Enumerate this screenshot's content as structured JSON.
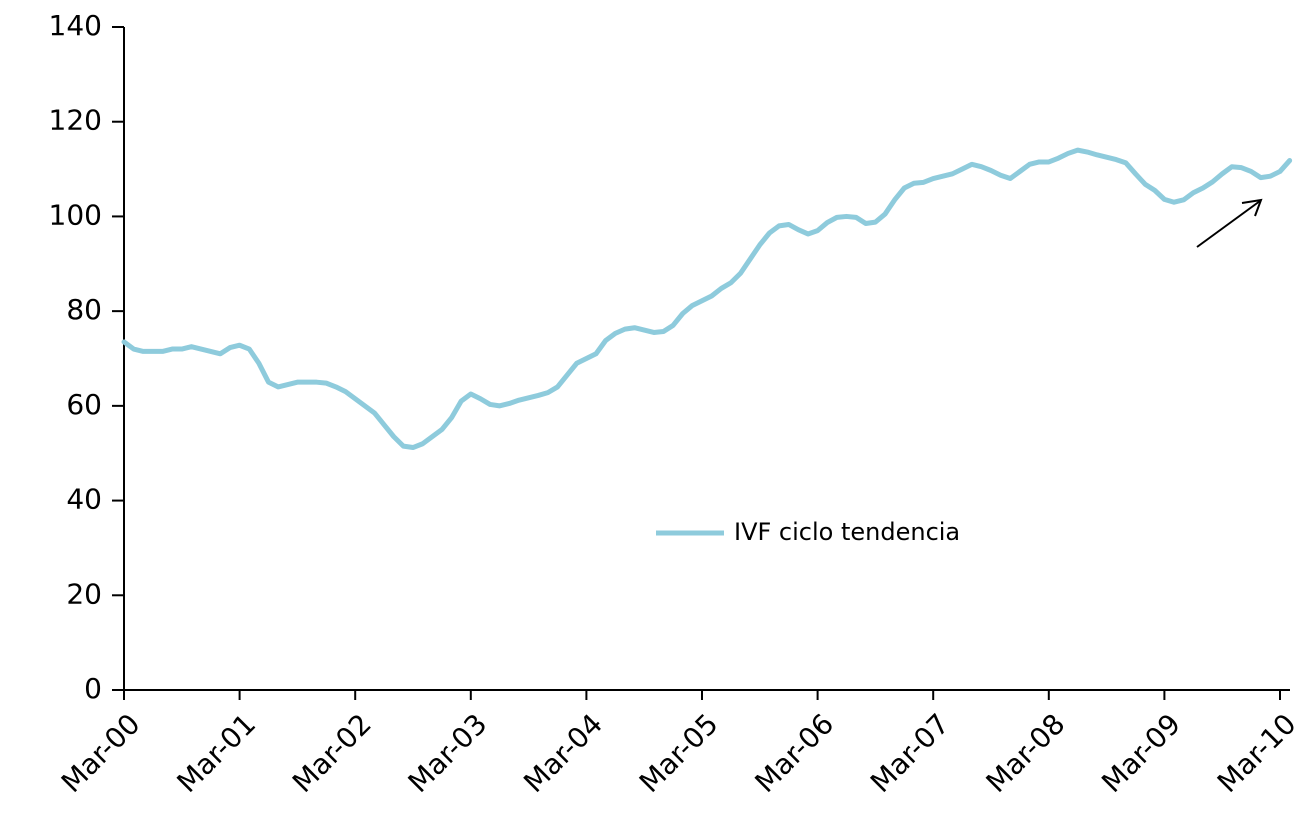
{
  "chart_data": {
    "type": "line",
    "categories": [
      "Mar-00",
      null,
      null,
      null,
      null,
      null,
      null,
      null,
      null,
      null,
      null,
      null,
      "Mar-01",
      null,
      null,
      null,
      null,
      null,
      null,
      null,
      null,
      null,
      null,
      null,
      "Mar-02",
      null,
      null,
      null,
      null,
      null,
      null,
      null,
      null,
      null,
      null,
      null,
      "Mar-03",
      null,
      null,
      null,
      null,
      null,
      null,
      null,
      null,
      null,
      null,
      null,
      "Mar-04",
      null,
      null,
      null,
      null,
      null,
      null,
      null,
      null,
      null,
      null,
      null,
      "Mar-05",
      null,
      null,
      null,
      null,
      null,
      null,
      null,
      null,
      null,
      null,
      null,
      "Mar-06",
      null,
      null,
      null,
      null,
      null,
      null,
      null,
      null,
      null,
      null,
      null,
      "Mar-07",
      null,
      null,
      null,
      null,
      null,
      null,
      null,
      null,
      null,
      null,
      null,
      "Mar-08",
      null,
      null,
      null,
      null,
      null,
      null,
      null,
      null,
      null,
      null,
      null,
      "Mar-09",
      null,
      null,
      null,
      null,
      null,
      null,
      null,
      null,
      null,
      null,
      null,
      "Mar-10",
      null
    ],
    "series": [
      {
        "name": "IVF ciclo tendencia",
        "color": "#8ecbdc",
        "values": [
          73.5,
          72,
          71.5,
          71.5,
          71.5,
          72,
          72,
          72.5,
          72,
          71.5,
          71,
          72.3,
          72.8,
          72,
          69,
          65,
          64,
          64.5,
          65,
          65,
          65,
          64.8,
          64,
          63,
          61.5,
          60,
          58.5,
          56,
          53.5,
          51.5,
          51.2,
          52,
          53.5,
          55,
          57.5,
          61,
          62.5,
          61.5,
          60.3,
          60,
          60.5,
          61.2,
          61.7,
          62.2,
          62.8,
          64,
          66.5,
          69,
          70,
          71,
          73.8,
          75.3,
          76.2,
          76.5,
          76,
          75.5,
          75.7,
          77,
          79.5,
          81.2,
          82.2,
          83.2,
          84.8,
          86,
          88,
          91,
          94,
          96.5,
          98,
          98.3,
          97.2,
          96.3,
          97,
          98.7,
          99.8,
          100,
          99.8,
          98.5,
          98.8,
          100.5,
          103.5,
          106,
          107,
          107.2,
          108,
          108.5,
          109,
          110,
          111,
          110.5,
          109.7,
          108.7,
          108,
          109.5,
          111,
          111.5,
          111.5,
          112.3,
          113.3,
          114,
          113.6,
          113,
          112.5,
          112,
          111.3,
          109,
          106.8,
          105.5,
          103.6,
          103,
          103.5,
          105,
          106,
          107.3,
          109,
          110.5,
          110.3,
          109.5,
          108.2,
          108.5,
          109.5,
          111.8
        ]
      }
    ],
    "ylim": [
      0,
      140
    ],
    "yticks": [
      0,
      20,
      40,
      60,
      80,
      100,
      120,
      140
    ],
    "grid": false
  }
}
